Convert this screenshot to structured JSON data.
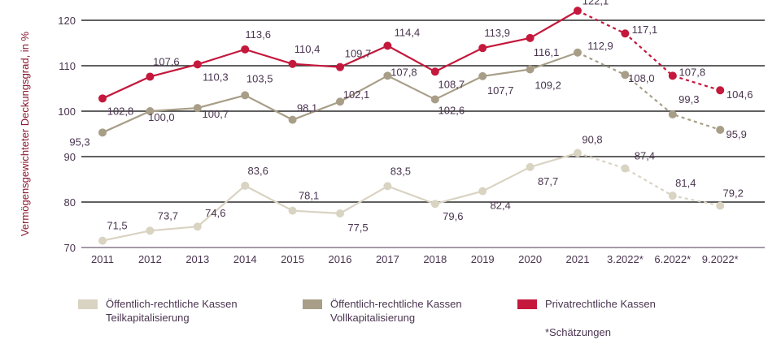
{
  "chart_data": {
    "type": "line",
    "ylabel": "Vermögensgewichteter Deckungsgrad, in %",
    "ylim": [
      70,
      125
    ],
    "yticks": [
      70,
      80,
      90,
      100,
      110,
      120
    ],
    "categories": [
      "2011",
      "2012",
      "2013",
      "2014",
      "2015",
      "2016",
      "2017",
      "2018",
      "2019",
      "2020",
      "2021",
      "3.2022*",
      "6.2022*",
      "9.2022*"
    ],
    "estimate_start_index": 10,
    "series": [
      {
        "name": "Öffentlich-rechtliche Kassen Teilkapitalisierung",
        "name_line1": "Öffentlich-rechtliche Kassen",
        "name_line2": "Teilkapitalisierung",
        "color": "#d9d3c2",
        "values": [
          71.5,
          73.7,
          74.6,
          83.6,
          78.1,
          77.5,
          83.5,
          79.6,
          82.4,
          87.7,
          90.8,
          87.4,
          81.4,
          79.2
        ],
        "labels": [
          "71,5",
          "73,7",
          "74,6",
          "83,6",
          "78,1",
          "77,5",
          "83,5",
          "79,6",
          "82,4",
          "87,7",
          "90,8",
          "87,4",
          "81,4",
          "79,2"
        ]
      },
      {
        "name": "Öffentlich-rechtliche Kassen Vollkapitalisierung",
        "name_line1": "Öffentlich-rechtliche Kassen",
        "name_line2": "Vollkapitalisierung",
        "color": "#a89e88",
        "values": [
          95.3,
          100.0,
          100.7,
          103.5,
          98.1,
          102.1,
          107.8,
          102.6,
          107.7,
          109.2,
          112.9,
          108.0,
          99.3,
          95.9
        ],
        "labels": [
          "95,3",
          "100,0",
          "100,7",
          "103,5",
          "98,1",
          "102,1",
          "107,8",
          "102,6",
          "107,7",
          "109,2",
          "112,9",
          "108,0",
          "99,3",
          "95,9"
        ]
      },
      {
        "name": "Privatrechtliche Kassen",
        "name_line1": "Privatrechtliche Kassen",
        "name_line2": "",
        "color": "#c4183c",
        "values": [
          102.8,
          107.6,
          110.3,
          113.6,
          110.4,
          109.7,
          114.4,
          108.7,
          113.9,
          116.1,
          122.1,
          117.1,
          107.8,
          104.6
        ],
        "labels": [
          "102,8",
          "107,6",
          "110,3",
          "113,6",
          "110,4",
          "109,7",
          "114,4",
          "108,7",
          "113,9",
          "116,1",
          "122,1",
          "117,1",
          "107,8",
          "104,6"
        ]
      }
    ],
    "footnote": "*Schätzungen"
  }
}
